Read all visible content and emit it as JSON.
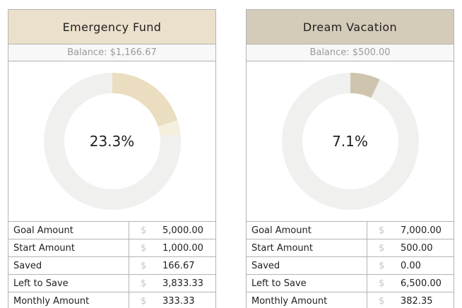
{
  "colors": {
    "page_background": "#ffffff",
    "border": "#b3b3b3",
    "balance_bar_background": "#f8f8f8",
    "balance_text": "#9a9a9a",
    "table_text": "#212121",
    "dollar_symbol": "#c6c6c6",
    "donut_remainder": "#f0f0ef"
  },
  "chart_data": [
    {
      "type": "donut",
      "title": "Emergency Fund",
      "header_color": "#ebe0cb",
      "balance_text": "Balance: $1,166.67",
      "balance_value": 1166.67,
      "center_label": "23.3%",
      "slices": [
        {
          "name": "Start Amount",
          "amount": 1000.0,
          "percent": 20.0,
          "color": "#eaddc0"
        },
        {
          "name": "Saved",
          "amount": 166.67,
          "percent": 3.3,
          "color": "#f5efdd"
        },
        {
          "name": "Remaining",
          "amount": 3833.33,
          "percent": 76.7,
          "color": "#f0f0ef"
        }
      ],
      "table": {
        "rows": [
          {
            "label": "Goal Amount",
            "currency": "$",
            "value": "5,000.00"
          },
          {
            "label": "Start Amount",
            "currency": "$",
            "value": "1,000.00"
          },
          {
            "label": "Saved",
            "currency": "$",
            "value": "166.67"
          },
          {
            "label": "Left to Save",
            "currency": "$",
            "value": "3,833.33"
          },
          {
            "label": "Monthly Amount",
            "currency": "$",
            "value": "333.33"
          }
        ]
      }
    },
    {
      "type": "donut",
      "title": "Dream Vacation",
      "header_color": "#d4cbb8",
      "balance_text": "Balance: $500.00",
      "balance_value": 500.0,
      "center_label": "7.1%",
      "slices": [
        {
          "name": "Start Amount",
          "amount": 500.0,
          "percent": 7.1,
          "color": "#cfc5ae"
        },
        {
          "name": "Remaining",
          "amount": 6500.0,
          "percent": 92.9,
          "color": "#f0f0ef"
        }
      ],
      "table": {
        "rows": [
          {
            "label": "Goal Amount",
            "currency": "$",
            "value": "7,000.00"
          },
          {
            "label": "Start Amount",
            "currency": "$",
            "value": "500.00"
          },
          {
            "label": "Saved",
            "currency": "$",
            "value": "0.00"
          },
          {
            "label": "Left to Save",
            "currency": "$",
            "value": "6,500.00"
          },
          {
            "label": "Monthly Amount",
            "currency": "$",
            "value": "382.35"
          }
        ]
      }
    }
  ]
}
